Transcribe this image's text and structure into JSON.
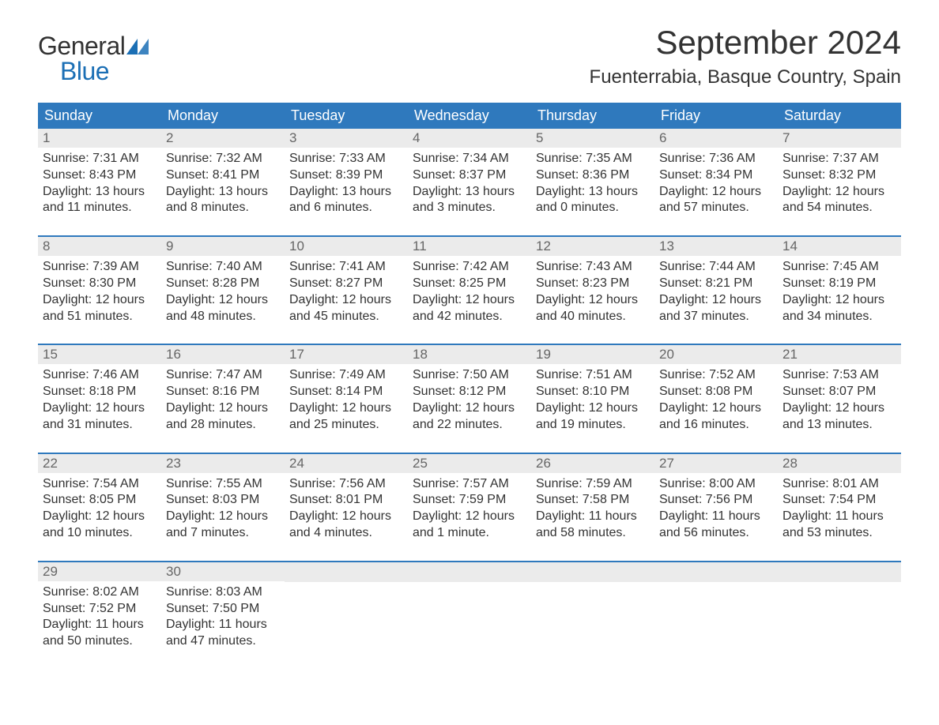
{
  "logo": {
    "text_top": "General",
    "text_bottom": "Blue",
    "mark_color": "#1b6fb5",
    "text_general_color": "#333333",
    "text_blue_color": "#1b6fb5"
  },
  "title": {
    "month": "September 2024",
    "location": "Fuenterrabia, Basque Country, Spain",
    "month_fontsize": 42,
    "location_fontsize": 24,
    "color": "#333333"
  },
  "colors": {
    "header_bg": "#2f79bd",
    "header_text": "#ffffff",
    "daynum_bg": "#ebebeb",
    "daynum_text": "#666666",
    "body_text": "#333333",
    "week_divider": "#2f79bd",
    "page_bg": "#ffffff"
  },
  "weekdays": [
    "Sunday",
    "Monday",
    "Tuesday",
    "Wednesday",
    "Thursday",
    "Friday",
    "Saturday"
  ],
  "weeks": [
    [
      {
        "num": "1",
        "sunrise": "Sunrise: 7:31 AM",
        "sunset": "Sunset: 8:43 PM",
        "daylight1": "Daylight: 13 hours",
        "daylight2": "and 11 minutes."
      },
      {
        "num": "2",
        "sunrise": "Sunrise: 7:32 AM",
        "sunset": "Sunset: 8:41 PM",
        "daylight1": "Daylight: 13 hours",
        "daylight2": "and 8 minutes."
      },
      {
        "num": "3",
        "sunrise": "Sunrise: 7:33 AM",
        "sunset": "Sunset: 8:39 PM",
        "daylight1": "Daylight: 13 hours",
        "daylight2": "and 6 minutes."
      },
      {
        "num": "4",
        "sunrise": "Sunrise: 7:34 AM",
        "sunset": "Sunset: 8:37 PM",
        "daylight1": "Daylight: 13 hours",
        "daylight2": "and 3 minutes."
      },
      {
        "num": "5",
        "sunrise": "Sunrise: 7:35 AM",
        "sunset": "Sunset: 8:36 PM",
        "daylight1": "Daylight: 13 hours",
        "daylight2": "and 0 minutes."
      },
      {
        "num": "6",
        "sunrise": "Sunrise: 7:36 AM",
        "sunset": "Sunset: 8:34 PM",
        "daylight1": "Daylight: 12 hours",
        "daylight2": "and 57 minutes."
      },
      {
        "num": "7",
        "sunrise": "Sunrise: 7:37 AM",
        "sunset": "Sunset: 8:32 PM",
        "daylight1": "Daylight: 12 hours",
        "daylight2": "and 54 minutes."
      }
    ],
    [
      {
        "num": "8",
        "sunrise": "Sunrise: 7:39 AM",
        "sunset": "Sunset: 8:30 PM",
        "daylight1": "Daylight: 12 hours",
        "daylight2": "and 51 minutes."
      },
      {
        "num": "9",
        "sunrise": "Sunrise: 7:40 AM",
        "sunset": "Sunset: 8:28 PM",
        "daylight1": "Daylight: 12 hours",
        "daylight2": "and 48 minutes."
      },
      {
        "num": "10",
        "sunrise": "Sunrise: 7:41 AM",
        "sunset": "Sunset: 8:27 PM",
        "daylight1": "Daylight: 12 hours",
        "daylight2": "and 45 minutes."
      },
      {
        "num": "11",
        "sunrise": "Sunrise: 7:42 AM",
        "sunset": "Sunset: 8:25 PM",
        "daylight1": "Daylight: 12 hours",
        "daylight2": "and 42 minutes."
      },
      {
        "num": "12",
        "sunrise": "Sunrise: 7:43 AM",
        "sunset": "Sunset: 8:23 PM",
        "daylight1": "Daylight: 12 hours",
        "daylight2": "and 40 minutes."
      },
      {
        "num": "13",
        "sunrise": "Sunrise: 7:44 AM",
        "sunset": "Sunset: 8:21 PM",
        "daylight1": "Daylight: 12 hours",
        "daylight2": "and 37 minutes."
      },
      {
        "num": "14",
        "sunrise": "Sunrise: 7:45 AM",
        "sunset": "Sunset: 8:19 PM",
        "daylight1": "Daylight: 12 hours",
        "daylight2": "and 34 minutes."
      }
    ],
    [
      {
        "num": "15",
        "sunrise": "Sunrise: 7:46 AM",
        "sunset": "Sunset: 8:18 PM",
        "daylight1": "Daylight: 12 hours",
        "daylight2": "and 31 minutes."
      },
      {
        "num": "16",
        "sunrise": "Sunrise: 7:47 AM",
        "sunset": "Sunset: 8:16 PM",
        "daylight1": "Daylight: 12 hours",
        "daylight2": "and 28 minutes."
      },
      {
        "num": "17",
        "sunrise": "Sunrise: 7:49 AM",
        "sunset": "Sunset: 8:14 PM",
        "daylight1": "Daylight: 12 hours",
        "daylight2": "and 25 minutes."
      },
      {
        "num": "18",
        "sunrise": "Sunrise: 7:50 AM",
        "sunset": "Sunset: 8:12 PM",
        "daylight1": "Daylight: 12 hours",
        "daylight2": "and 22 minutes."
      },
      {
        "num": "19",
        "sunrise": "Sunrise: 7:51 AM",
        "sunset": "Sunset: 8:10 PM",
        "daylight1": "Daylight: 12 hours",
        "daylight2": "and 19 minutes."
      },
      {
        "num": "20",
        "sunrise": "Sunrise: 7:52 AM",
        "sunset": "Sunset: 8:08 PM",
        "daylight1": "Daylight: 12 hours",
        "daylight2": "and 16 minutes."
      },
      {
        "num": "21",
        "sunrise": "Sunrise: 7:53 AM",
        "sunset": "Sunset: 8:07 PM",
        "daylight1": "Daylight: 12 hours",
        "daylight2": "and 13 minutes."
      }
    ],
    [
      {
        "num": "22",
        "sunrise": "Sunrise: 7:54 AM",
        "sunset": "Sunset: 8:05 PM",
        "daylight1": "Daylight: 12 hours",
        "daylight2": "and 10 minutes."
      },
      {
        "num": "23",
        "sunrise": "Sunrise: 7:55 AM",
        "sunset": "Sunset: 8:03 PM",
        "daylight1": "Daylight: 12 hours",
        "daylight2": "and 7 minutes."
      },
      {
        "num": "24",
        "sunrise": "Sunrise: 7:56 AM",
        "sunset": "Sunset: 8:01 PM",
        "daylight1": "Daylight: 12 hours",
        "daylight2": "and 4 minutes."
      },
      {
        "num": "25",
        "sunrise": "Sunrise: 7:57 AM",
        "sunset": "Sunset: 7:59 PM",
        "daylight1": "Daylight: 12 hours",
        "daylight2": "and 1 minute."
      },
      {
        "num": "26",
        "sunrise": "Sunrise: 7:59 AM",
        "sunset": "Sunset: 7:58 PM",
        "daylight1": "Daylight: 11 hours",
        "daylight2": "and 58 minutes."
      },
      {
        "num": "27",
        "sunrise": "Sunrise: 8:00 AM",
        "sunset": "Sunset: 7:56 PM",
        "daylight1": "Daylight: 11 hours",
        "daylight2": "and 56 minutes."
      },
      {
        "num": "28",
        "sunrise": "Sunrise: 8:01 AM",
        "sunset": "Sunset: 7:54 PM",
        "daylight1": "Daylight: 11 hours",
        "daylight2": "and 53 minutes."
      }
    ],
    [
      {
        "num": "29",
        "sunrise": "Sunrise: 8:02 AM",
        "sunset": "Sunset: 7:52 PM",
        "daylight1": "Daylight: 11 hours",
        "daylight2": "and 50 minutes."
      },
      {
        "num": "30",
        "sunrise": "Sunrise: 8:03 AM",
        "sunset": "Sunset: 7:50 PM",
        "daylight1": "Daylight: 11 hours",
        "daylight2": "and 47 minutes."
      },
      null,
      null,
      null,
      null,
      null
    ]
  ]
}
